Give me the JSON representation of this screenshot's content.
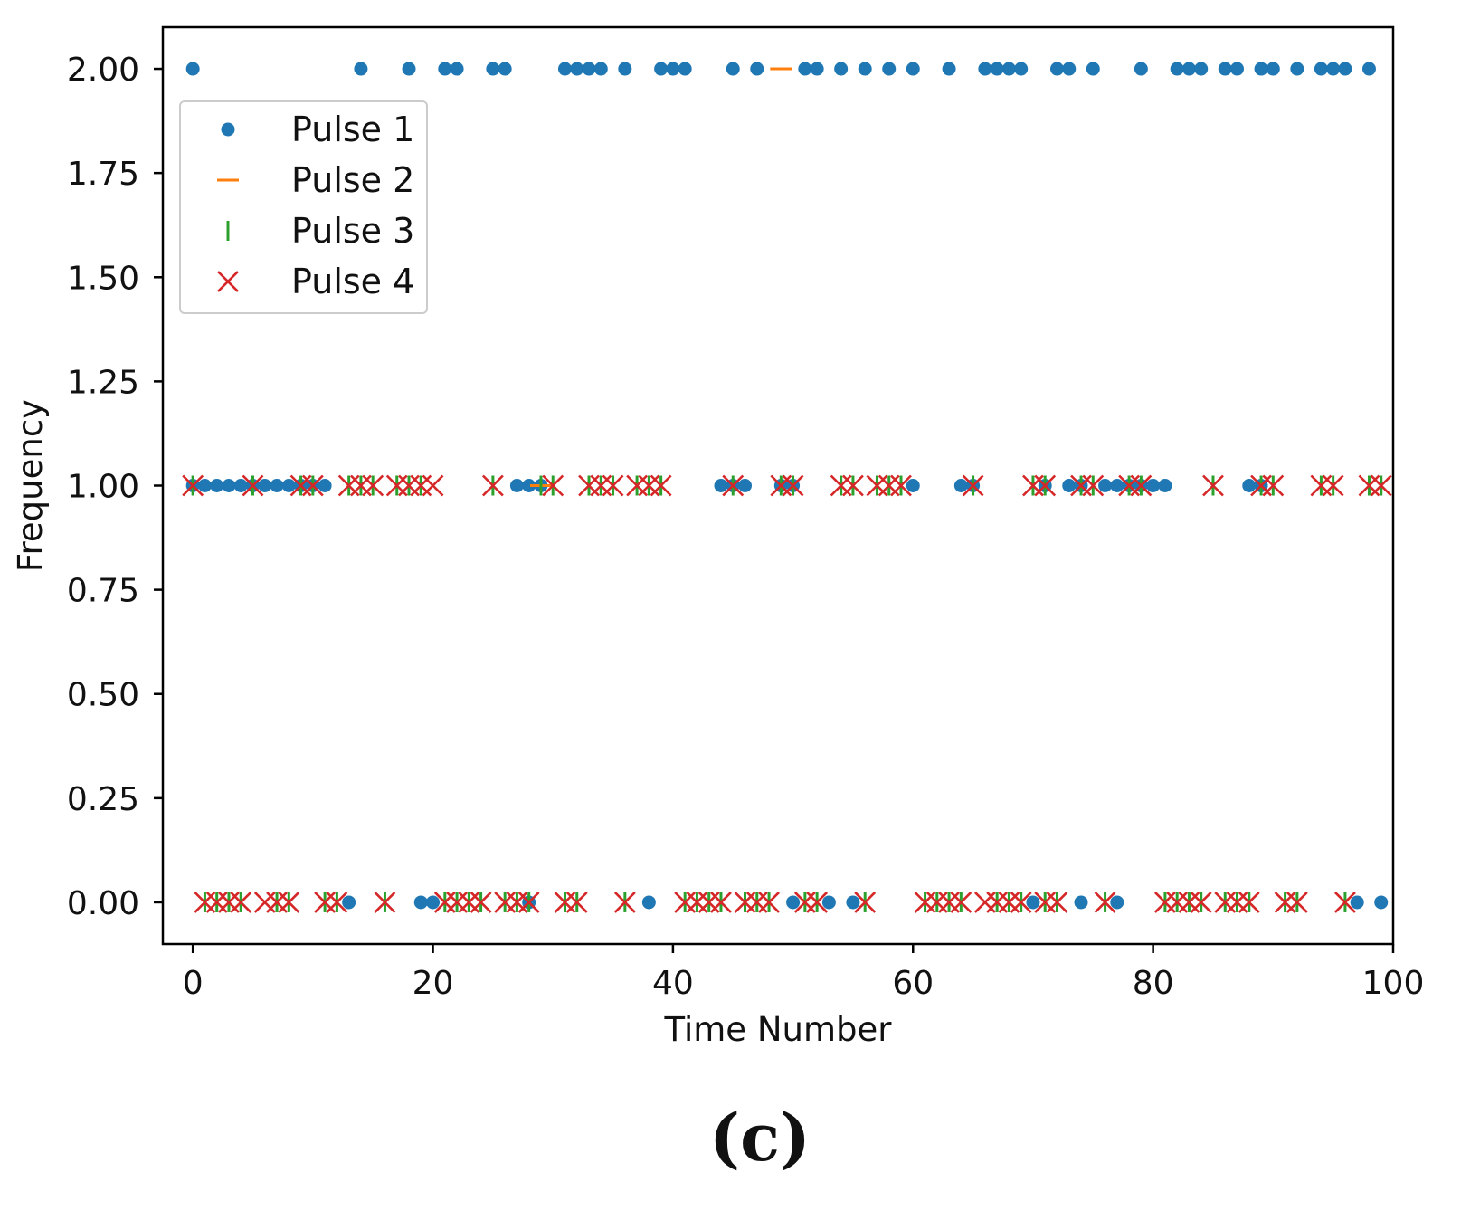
{
  "chart_data": {
    "type": "scatter",
    "title": "",
    "xlabel": "Time Number",
    "ylabel": "Frequency",
    "xlim": [
      -2.5,
      100
    ],
    "ylim": [
      -0.1,
      2.1
    ],
    "xticks": [
      0,
      20,
      40,
      60,
      80,
      100
    ],
    "yticks": [
      0.0,
      0.25,
      0.5,
      0.75,
      1.0,
      1.25,
      1.5,
      1.75,
      2.0
    ],
    "xtick_labels": [
      "0",
      "20",
      "40",
      "60",
      "80",
      "100"
    ],
    "ytick_labels": [
      "0.00",
      "0.25",
      "0.50",
      "0.75",
      "1.00",
      "1.25",
      "1.50",
      "1.75",
      "2.00"
    ],
    "grid": false,
    "legend_position": "upper-left",
    "caption": "(c)",
    "series": [
      {
        "name": "Pulse 1",
        "marker": "dot",
        "color": "#1f77b4",
        "x": [
          0,
          14,
          18,
          21,
          22,
          25,
          26,
          31,
          32,
          33,
          34,
          36,
          39,
          40,
          41,
          45,
          47,
          51,
          52,
          54,
          56,
          58,
          60,
          63,
          66,
          67,
          68,
          69,
          72,
          73,
          75,
          79,
          82,
          83,
          84,
          86,
          87,
          89,
          90,
          92,
          94,
          95,
          96,
          98,
          0,
          1,
          2,
          3,
          4,
          5,
          6,
          7,
          8,
          9,
          10,
          11,
          27,
          28,
          29,
          44,
          45,
          46,
          49,
          50,
          60,
          64,
          65,
          71,
          73,
          74,
          76,
          77,
          78,
          79,
          80,
          81,
          88,
          89,
          13,
          19,
          20,
          28,
          38,
          50,
          53,
          55,
          70,
          74,
          77,
          97,
          99
        ],
        "y": [
          2,
          2,
          2,
          2,
          2,
          2,
          2,
          2,
          2,
          2,
          2,
          2,
          2,
          2,
          2,
          2,
          2,
          2,
          2,
          2,
          2,
          2,
          2,
          2,
          2,
          2,
          2,
          2,
          2,
          2,
          2,
          2,
          2,
          2,
          2,
          2,
          2,
          2,
          2,
          2,
          2,
          2,
          2,
          2,
          1,
          1,
          1,
          1,
          1,
          1,
          1,
          1,
          1,
          1,
          1,
          1,
          1,
          1,
          1,
          1,
          1,
          1,
          1,
          1,
          1,
          1,
          1,
          1,
          1,
          1,
          1,
          1,
          1,
          1,
          1,
          1,
          1,
          1,
          0,
          0,
          0,
          0,
          0,
          0,
          0,
          0,
          0,
          0,
          0,
          0,
          0
        ]
      },
      {
        "name": "Pulse 2",
        "marker": "hline",
        "color": "#ff7f0e",
        "x": [
          49,
          29
        ],
        "y": [
          2,
          1
        ]
      },
      {
        "name": "Pulse 3",
        "marker": "vline",
        "color": "#2ca02c",
        "x": [
          0,
          5,
          9,
          10,
          13,
          14,
          15,
          17,
          18,
          19,
          25,
          29,
          30,
          33,
          34,
          35,
          37,
          38,
          39,
          45,
          49,
          50,
          54,
          55,
          57,
          58,
          59,
          65,
          70,
          71,
          74,
          75,
          78,
          79,
          85,
          89,
          90,
          94,
          95,
          98,
          99,
          1,
          2,
          3,
          4,
          7,
          8,
          11,
          12,
          16,
          21,
          22,
          23,
          24,
          26,
          27,
          28,
          31,
          32,
          36,
          41,
          42,
          43,
          44,
          46,
          47,
          48,
          51,
          52,
          56,
          61,
          62,
          63,
          64,
          67,
          68,
          69,
          71,
          72,
          76,
          81,
          82,
          83,
          84,
          86,
          87,
          88,
          91,
          92,
          96
        ],
        "y": [
          1,
          1,
          1,
          1,
          1,
          1,
          1,
          1,
          1,
          1,
          1,
          1,
          1,
          1,
          1,
          1,
          1,
          1,
          1,
          1,
          1,
          1,
          1,
          1,
          1,
          1,
          1,
          1,
          1,
          1,
          1,
          1,
          1,
          1,
          1,
          1,
          1,
          1,
          1,
          1,
          1,
          0,
          0,
          0,
          0,
          0,
          0,
          0,
          0,
          0,
          0,
          0,
          0,
          0,
          0,
          0,
          0,
          0,
          0,
          0,
          0,
          0,
          0,
          0,
          0,
          0,
          0,
          0,
          0,
          0,
          0,
          0,
          0,
          0,
          0,
          0,
          0,
          0,
          0,
          0,
          0,
          0,
          0,
          0,
          0,
          0,
          0,
          0,
          0,
          0
        ]
      },
      {
        "name": "Pulse 4",
        "marker": "x",
        "color": "#d62728",
        "x": [
          0,
          5,
          9,
          10,
          13,
          14,
          15,
          17,
          18,
          19,
          20,
          25,
          30,
          33,
          34,
          35,
          37,
          38,
          39,
          45,
          49,
          50,
          54,
          55,
          57,
          58,
          59,
          65,
          70,
          71,
          74,
          75,
          78,
          79,
          85,
          89,
          90,
          94,
          95,
          98,
          99,
          1,
          2,
          3,
          4,
          6,
          7,
          8,
          11,
          12,
          16,
          21,
          22,
          23,
          24,
          26,
          27,
          28,
          31,
          32,
          36,
          41,
          42,
          43,
          44,
          46,
          47,
          48,
          51,
          52,
          56,
          61,
          62,
          63,
          64,
          66,
          67,
          68,
          69,
          71,
          72,
          76,
          81,
          82,
          83,
          84,
          86,
          87,
          88,
          91,
          92,
          96
        ],
        "y": [
          1,
          1,
          1,
          1,
          1,
          1,
          1,
          1,
          1,
          1,
          1,
          1,
          1,
          1,
          1,
          1,
          1,
          1,
          1,
          1,
          1,
          1,
          1,
          1,
          1,
          1,
          1,
          1,
          1,
          1,
          1,
          1,
          1,
          1,
          1,
          1,
          1,
          1,
          1,
          1,
          1,
          0,
          0,
          0,
          0,
          0,
          0,
          0,
          0,
          0,
          0,
          0,
          0,
          0,
          0,
          0,
          0,
          0,
          0,
          0,
          0,
          0,
          0,
          0,
          0,
          0,
          0,
          0,
          0,
          0,
          0,
          0,
          0,
          0,
          0,
          0,
          0,
          0,
          0,
          0,
          0,
          0,
          0,
          0,
          0,
          0,
          0,
          0,
          0,
          0,
          0,
          0
        ]
      }
    ]
  }
}
